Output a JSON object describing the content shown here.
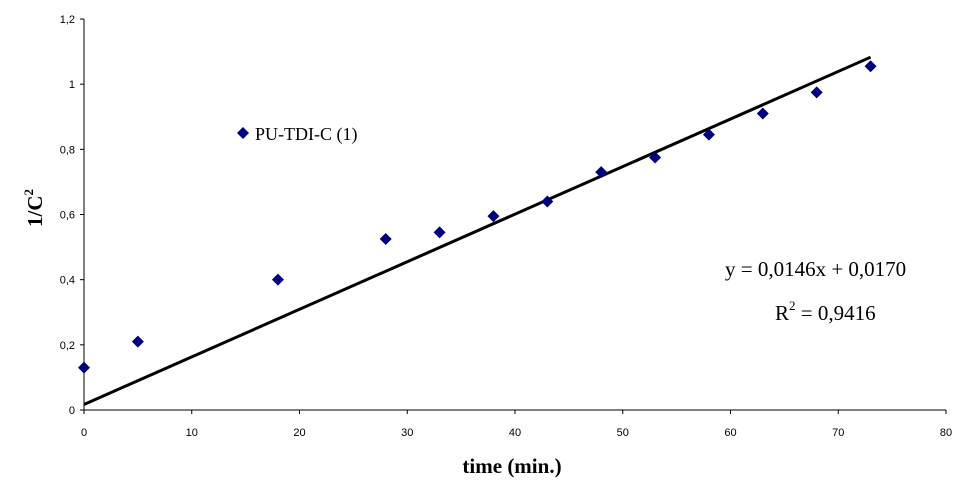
{
  "chart_data": {
    "type": "scatter",
    "xlabel": "time (min.)",
    "ylabel_main": "1/C",
    "ylabel_sup": "2",
    "xlim": [
      0,
      80
    ],
    "ylim": [
      0,
      1.2
    ],
    "x_ticks": [
      "0",
      "10",
      "20",
      "30",
      "40",
      "50",
      "60",
      "70",
      "80"
    ],
    "y_ticks": [
      "0",
      "0,2",
      "0,4",
      "0,6",
      "0,8",
      "1",
      "1,2"
    ],
    "grid": false,
    "legend_position": "top-left",
    "series": [
      {
        "name": "PU-TDI-C (1)",
        "color": "#00007f",
        "marker": "diamond",
        "x": [
          0,
          5,
          18,
          28,
          33,
          38,
          43,
          48,
          53,
          58,
          63,
          68,
          73
        ],
        "y": [
          0.13,
          0.21,
          0.4,
          0.525,
          0.545,
          0.595,
          0.64,
          0.73,
          0.775,
          0.845,
          0.91,
          0.975,
          1.055
        ]
      }
    ],
    "trendline": {
      "slope": 0.0146,
      "intercept": 0.017,
      "x_range": [
        0,
        73
      ],
      "color": "#000000"
    },
    "annotation": {
      "equation": "y = 0,0146x + 0,0170",
      "r2_main": "R",
      "r2_sup": "2",
      "r2_value": " = 0,9416"
    }
  }
}
